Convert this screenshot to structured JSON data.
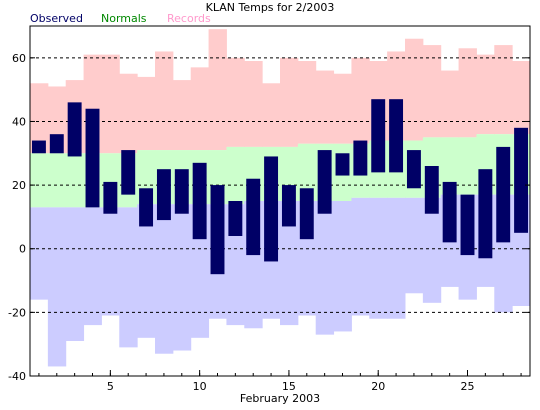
{
  "chart_data": {
    "type": "bar",
    "title": "KLAN Temps for 2/2003",
    "xlabel": "February 2003",
    "ylabel": "",
    "ylim": [
      -40,
      70
    ],
    "xlim": [
      0.5,
      28.5
    ],
    "yticks": [
      -40,
      -20,
      0,
      20,
      40,
      60
    ],
    "xticks": [
      5,
      10,
      15,
      20,
      25
    ],
    "grid": "horizontal dashed at y ticks",
    "legend": [
      "Observed",
      "Normals",
      "Records"
    ],
    "legend_placement": "top-left",
    "colors": {
      "observed": "#000066",
      "normals": "#ccffcc",
      "records": "#ffcccc",
      "lows_band": "#ccccff",
      "legend_observed": "#000066",
      "legend_normals": "#008800",
      "legend_records": "#ff99cc"
    },
    "days": [
      1,
      2,
      3,
      4,
      5,
      6,
      7,
      8,
      9,
      10,
      11,
      12,
      13,
      14,
      15,
      16,
      17,
      18,
      19,
      20,
      21,
      22,
      23,
      24,
      25,
      26,
      27,
      28
    ],
    "observed_high": [
      34,
      36,
      46,
      44,
      21,
      31,
      19,
      25,
      25,
      27,
      20,
      15,
      22,
      29,
      20,
      19,
      31,
      30,
      34,
      47,
      47,
      31,
      26,
      21,
      17,
      25,
      32,
      38
    ],
    "observed_low": [
      30,
      30,
      29,
      13,
      11,
      17,
      7,
      9,
      11,
      3,
      -8,
      4,
      -2,
      -4,
      7,
      3,
      11,
      23,
      23,
      24,
      24,
      19,
      11,
      2,
      -2,
      -3,
      2,
      5
    ],
    "normal_high": [
      30,
      30,
      30,
      30,
      30,
      30,
      31,
      31,
      31,
      31,
      31,
      32,
      32,
      32,
      32,
      33,
      33,
      33,
      33,
      34,
      34,
      34,
      35,
      35,
      35,
      36,
      36,
      36
    ],
    "normal_low": [
      13,
      13,
      13,
      13,
      13,
      13,
      14,
      14,
      14,
      14,
      14,
      14,
      15,
      15,
      15,
      15,
      15,
      15,
      16,
      16,
      16,
      16,
      16,
      17,
      17,
      17,
      17,
      17
    ],
    "record_high": [
      52,
      51,
      53,
      61,
      61,
      55,
      54,
      62,
      53,
      57,
      69,
      60,
      59,
      52,
      60,
      59,
      56,
      55,
      60,
      59,
      62,
      66,
      64,
      56,
      63,
      61,
      64,
      59
    ],
    "record_low": [
      -16,
      -37,
      -29,
      -24,
      -21,
      -31,
      -28,
      -33,
      -32,
      -28,
      -22,
      -24,
      -25,
      -22,
      -24,
      -21,
      -27,
      -26,
      -21,
      -22,
      -22,
      -14,
      -17,
      -12,
      -16,
      -12,
      -20,
      -18
    ]
  }
}
